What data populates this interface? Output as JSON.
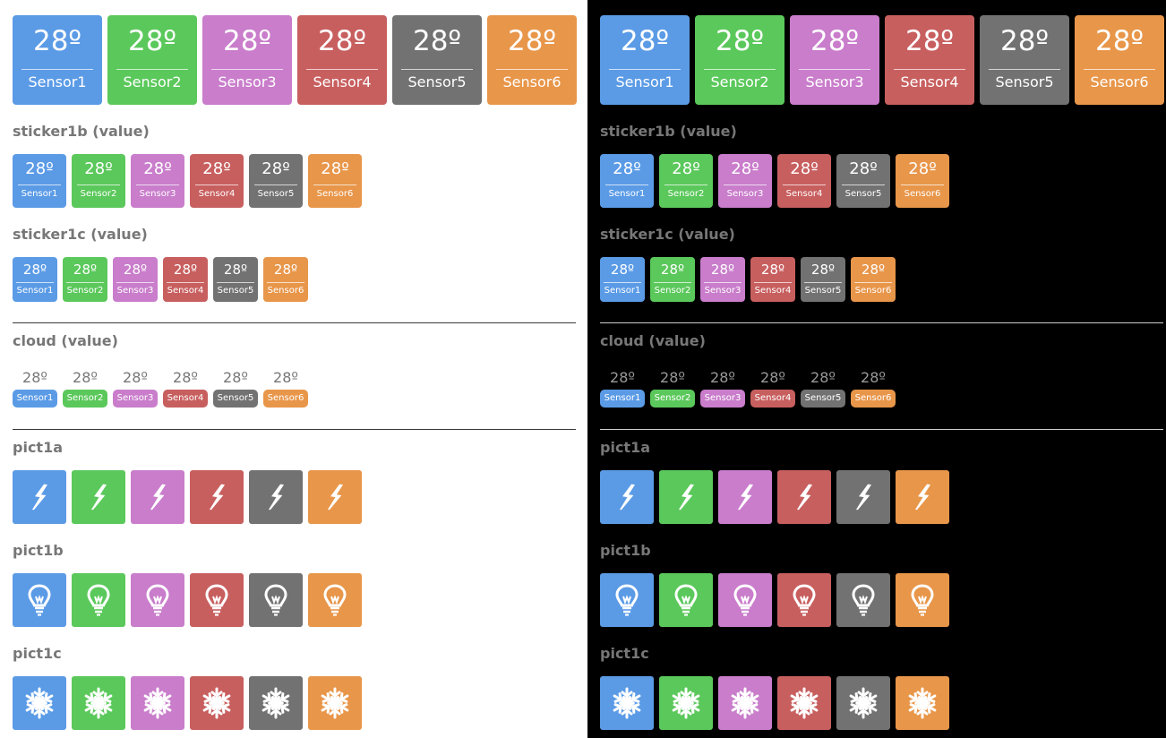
{
  "colors": [
    "#5b9be6",
    "#5bc85b",
    "#c97dcb",
    "#c85f5f",
    "#727272",
    "#e8964a"
  ],
  "sensors": [
    {
      "value": "28º",
      "label": "Sensor1"
    },
    {
      "value": "28º",
      "label": "Sensor2"
    },
    {
      "value": "28º",
      "label": "Sensor3"
    },
    {
      "value": "28º",
      "label": "Sensor4"
    },
    {
      "value": "28º",
      "label": "Sensor5"
    },
    {
      "value": "28º",
      "label": "Sensor6"
    }
  ],
  "sections": {
    "sticker1b": "sticker1b (value)",
    "sticker1c": "sticker1c (value)",
    "cloud": "cloud (value)",
    "pict1a": "pict1a",
    "pict1b": "pict1b",
    "pict1c": "pict1c"
  },
  "icons": {
    "pict1a": "lightning-icon",
    "pict1b": "light-bulb-icon",
    "pict1c": "snowflake-icon"
  }
}
